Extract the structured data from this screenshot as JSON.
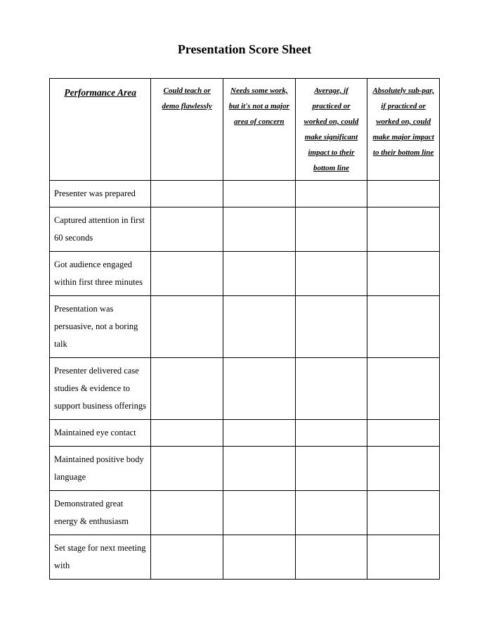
{
  "title": "Presentation Score Sheet",
  "table": {
    "header": {
      "perf_area": "Performance Area",
      "col1": "Could teach or demo flawlessly",
      "col2": "Needs some work, but it's not a major area of concern",
      "col3": "Average, if practiced or worked on, could make significant impact to their bottom line",
      "col4": "Absolutely sub-par, if practiced or worked on, could make major impact to their bottom line"
    },
    "rows": [
      {
        "label": "Presenter was prepared"
      },
      {
        "label": "Captured attention in first 60 seconds"
      },
      {
        "label": "Got audience engaged within first three minutes"
      },
      {
        "label": "Presentation was persuasive, not a boring talk"
      },
      {
        "label": "Presenter delivered case studies & evidence to support business offerings"
      },
      {
        "label": "Maintained eye contact"
      },
      {
        "label": "Maintained positive body language"
      },
      {
        "label": "Demonstrated great energy & enthusiasm"
      },
      {
        "label": "Set stage for next meeting with"
      }
    ],
    "style": {
      "border_color": "#000000",
      "background_color": "#ffffff",
      "title_fontsize": 18,
      "header_fontsize": 11,
      "row_fontsize": 12.5,
      "font_family": "Times New Roman",
      "col_widths_pct": [
        26,
        18.5,
        18.5,
        18.5,
        18.5
      ]
    }
  }
}
